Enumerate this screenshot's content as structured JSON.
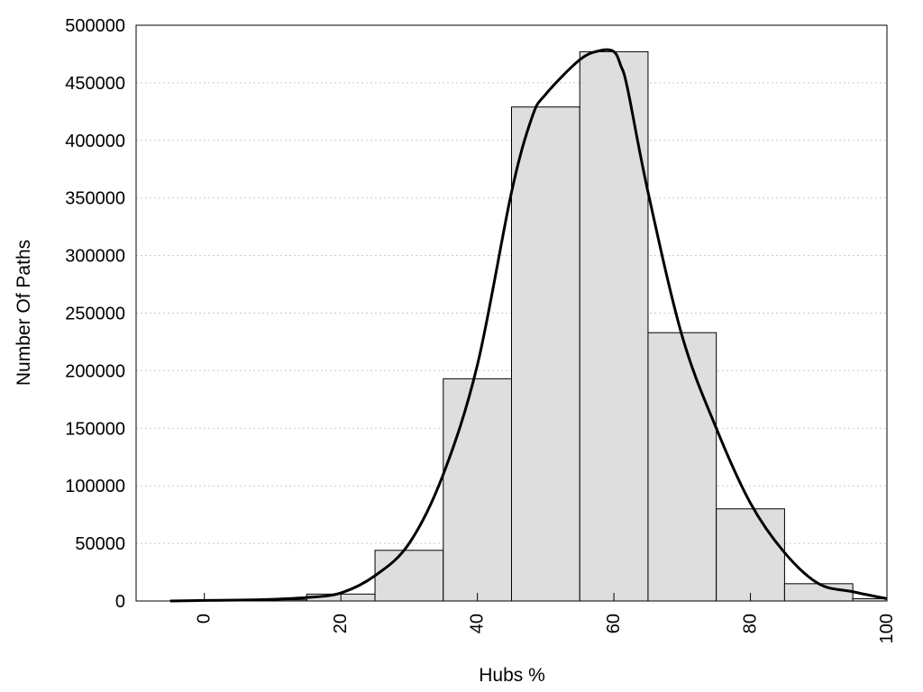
{
  "chart_data": {
    "type": "bar",
    "title": "",
    "xlabel": "Hubs %",
    "ylabel": "Number Of Paths",
    "xlim": [
      -10,
      100
    ],
    "ylim": [
      0,
      500000
    ],
    "grid": "horizontal dotted",
    "legend": "none",
    "x_ticks": [
      "0",
      "20",
      "40",
      "60",
      "80",
      "100"
    ],
    "y_ticks": [
      "0",
      "50000",
      "100000",
      "150000",
      "200000",
      "250000",
      "300000",
      "350000",
      "400000",
      "450000",
      "500000"
    ],
    "bins": [
      {
        "from": -5,
        "to": 5,
        "value": 500
      },
      {
        "from": 5,
        "to": 15,
        "value": 1000
      },
      {
        "from": 15,
        "to": 25,
        "value": 6000
      },
      {
        "from": 25,
        "to": 35,
        "value": 44000
      },
      {
        "from": 35,
        "to": 45,
        "value": 193000
      },
      {
        "from": 45,
        "to": 55,
        "value": 429000
      },
      {
        "from": 55,
        "to": 65,
        "value": 477000
      },
      {
        "from": 65,
        "to": 75,
        "value": 233000
      },
      {
        "from": 75,
        "to": 85,
        "value": 80000
      },
      {
        "from": 85,
        "to": 95,
        "value": 15000
      },
      {
        "from": 95,
        "to": 100,
        "value": 2000
      }
    ],
    "density_curve": {
      "x": [
        -5,
        0,
        5,
        10,
        15,
        20,
        25,
        30,
        35,
        40,
        45,
        48,
        50,
        55,
        58,
        60,
        61,
        62,
        65,
        70,
        75,
        80,
        85,
        90,
        95,
        100
      ],
      "y": [
        0,
        500,
        800,
        1500,
        3000,
        7000,
        22000,
        50000,
        110000,
        205000,
        355000,
        420000,
        440000,
        470000,
        478000,
        477000,
        465000,
        445000,
        355000,
        230000,
        150000,
        85000,
        42000,
        15000,
        8000,
        2000
      ]
    },
    "colors": {
      "bar_fill": "#dedede",
      "bar_stroke": "#000000",
      "curve": "#000000",
      "grid": "#c8c8c8"
    }
  }
}
